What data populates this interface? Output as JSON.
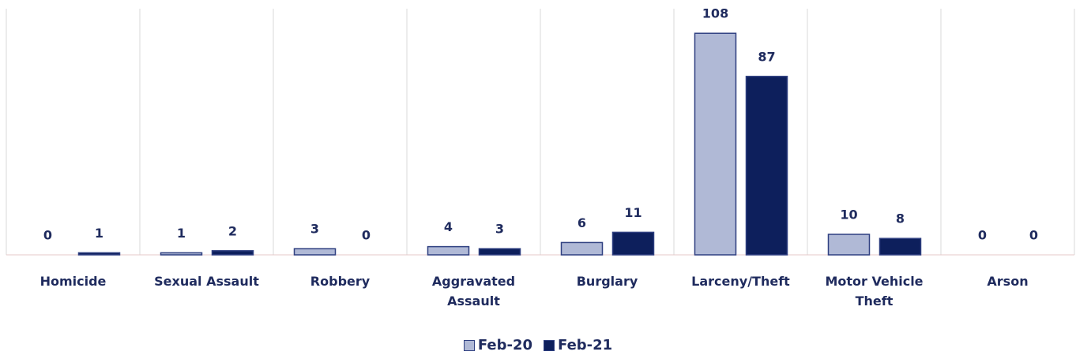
{
  "chart_data": {
    "type": "bar",
    "categories": [
      "Homicide",
      "Sexual Assault",
      "Robbery",
      "Aggravated Assault",
      "Burglary",
      "Larceny/Theft",
      "Motor Vehicle Theft",
      "Arson"
    ],
    "series": [
      {
        "name": "Feb-20",
        "color": "#b0b9d6",
        "values": [
          0,
          1,
          3,
          4,
          6,
          108,
          10,
          0
        ]
      },
      {
        "name": "Feb-21",
        "color": "#0d1f5c",
        "values": [
          1,
          2,
          0,
          3,
          11,
          87,
          8,
          0
        ]
      }
    ],
    "ylim": [
      0,
      120
    ],
    "legend": "bottom"
  }
}
